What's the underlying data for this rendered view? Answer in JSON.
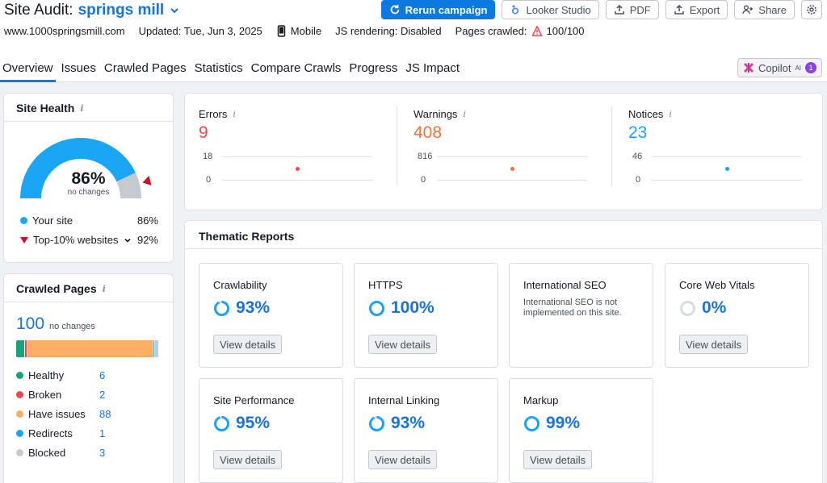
{
  "header": {
    "title_label": "Site Audit:",
    "project_name": "springs mill",
    "actions": {
      "rerun": "Rerun campaign",
      "looker": "Looker Studio",
      "pdf": "PDF",
      "export": "Export",
      "share": "Share"
    },
    "meta": {
      "domain": "www.1000springsmill.com",
      "updated": "Updated: Tue, Jun 3, 2025",
      "device": "Mobile",
      "js_rendering": "JS rendering: Disabled",
      "pages_crawled_label": "Pages crawled:",
      "pages_crawled_value": "100/100"
    }
  },
  "tabs": [
    {
      "label": "Overview",
      "active": true
    },
    {
      "label": "Issues"
    },
    {
      "label": "Crawled Pages"
    },
    {
      "label": "Statistics"
    },
    {
      "label": "Compare Crawls"
    },
    {
      "label": "Progress"
    },
    {
      "label": "JS Impact"
    }
  ],
  "copilot": {
    "label": "Copilot",
    "sup": "AI",
    "badge": "1"
  },
  "site_health": {
    "title": "Site Health",
    "percent": "86%",
    "sub": "no changes",
    "legend": [
      {
        "label": "Your site",
        "value": "86%"
      },
      {
        "label": "Top-10% websites",
        "value": "92%"
      }
    ],
    "gauge_fraction": 0.86,
    "top10_fraction": 0.92,
    "colors": {
      "fill": "#1ba5f5",
      "rest": "#c6c9d0",
      "marker": "#c4152a"
    }
  },
  "crawled_pages": {
    "title": "Crawled Pages",
    "total": "100",
    "sub": "no changes",
    "items": [
      {
        "label": "Healthy",
        "value": "6",
        "count": 6,
        "color": "#1aa37a"
      },
      {
        "label": "Broken",
        "value": "2",
        "count": 2,
        "color": "#ea4a51"
      },
      {
        "label": "Have issues",
        "value": "88",
        "count": 88,
        "color": "#fdad64"
      },
      {
        "label": "Redirects",
        "value": "1",
        "count": 1,
        "color": "#1ba5f5"
      },
      {
        "label": "Blocked",
        "value": "3",
        "count": 3,
        "color": "#c6c9d0"
      }
    ]
  },
  "metrics": [
    {
      "label": "Errors",
      "value": "9",
      "ymax": "18",
      "ymin": "0",
      "color": "#ea4a51"
    },
    {
      "label": "Warnings",
      "value": "408",
      "ymax": "816",
      "ymin": "0",
      "color": "#f0733d"
    },
    {
      "label": "Notices",
      "value": "23",
      "ymax": "46",
      "ymin": "0",
      "color": "#1ba5f5"
    }
  ],
  "thematic": {
    "title": "Thematic Reports",
    "view_details": "View details",
    "reports": [
      {
        "name": "Crawlability",
        "pct": "93%",
        "fraction": 0.93
      },
      {
        "name": "HTTPS",
        "pct": "100%",
        "fraction": 1.0
      },
      {
        "name": "International SEO",
        "note": "International SEO is not implemented on this site."
      },
      {
        "name": "Core Web Vitals",
        "pct": "0%",
        "fraction": 0
      },
      {
        "name": "Site Performance",
        "pct": "95%",
        "fraction": 0.95
      },
      {
        "name": "Internal Linking",
        "pct": "93%",
        "fraction": 0.93
      },
      {
        "name": "Markup",
        "pct": "99%",
        "fraction": 0.99
      }
    ]
  }
}
